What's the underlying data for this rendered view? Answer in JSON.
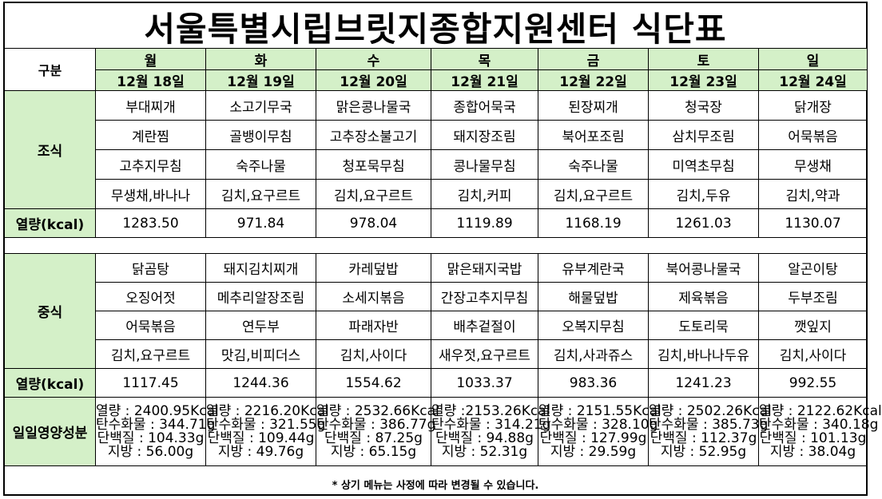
{
  "title": "서울특별시립브릿지종합지원센터  식단표",
  "header": {
    "category_label": "구분",
    "days": [
      "월",
      "화",
      "수",
      "목",
      "금",
      "토",
      "일"
    ],
    "dates": [
      "12월 18일",
      "12월 19일",
      "12월 20일",
      "12월 21일",
      "12월 22일",
      "12월 23일",
      "12월 24일"
    ]
  },
  "breakfast": {
    "label": "조식",
    "rows": [
      [
        "부대찌개",
        "소고기무국",
        "맑은콩나물국",
        "종합어묵국",
        "된장찌개",
        "청국장",
        "닭개장"
      ],
      [
        "계란찜",
        "골뱅이무침",
        "고추장소불고기",
        "돼지장조림",
        "북어포조림",
        "삼치무조림",
        "어묵볶음"
      ],
      [
        "고추지무침",
        "숙주나물",
        "청포묵무침",
        "콩나물무침",
        "숙주나물",
        "미역초무침",
        "무생채"
      ],
      [
        "무생채,바나나",
        "김치,요구르트",
        "김치,요구르트",
        "김치,커피",
        "김치,요구르트",
        "김치,두유",
        "김치,약과"
      ]
    ],
    "calorie_label": "열량(kcal)",
    "calories": [
      "1283.50",
      "971.84",
      "978.04",
      "1119.89",
      "1168.19",
      "1261.03",
      "1130.07"
    ]
  },
  "lunch": {
    "label": "중식",
    "rows": [
      [
        "닭곰탕",
        "돼지김치찌개",
        "카레덮밥",
        "맑은돼지국밥",
        "유부계란국",
        "북어콩나물국",
        "알곤이탕"
      ],
      [
        "오징어젓",
        "메추리알장조림",
        "소세지볶음",
        "간장고추지무침",
        "해물덮밥",
        "제육볶음",
        "두부조림"
      ],
      [
        "어묵볶음",
        "연두부",
        "파래자반",
        "배추겉절이",
        "오복지무침",
        "도토리묵",
        "깻잎지"
      ],
      [
        "김치,요구르트",
        "맛김,비피더스",
        "김치,사이다",
        "새우젓,요구르트",
        "김치,사과쥬스",
        "김치,바나나두유",
        "김치,사이다"
      ]
    ],
    "calorie_label": "열량(kcal)",
    "calories": [
      "1117.45",
      "1244.36",
      "1554.62",
      "1033.37",
      "983.36",
      "1241.23",
      "992.55"
    ]
  },
  "nutrition": {
    "label": "일일영양성분",
    "cells": [
      [
        "열량 : 2400.95Kcal",
        "탄수화물 : 344.71g",
        "단백질 : 104.33g",
        "지방 : 56.00g"
      ],
      [
        "열량 : 2216.20Kcal",
        "탄수화물 : 321.55g",
        "단백질 : 109.44g",
        "지방 : 49.76g"
      ],
      [
        "열량 : 2532.66Kcal",
        "탄수화물 : 386.77g",
        "단백질 : 87.25g",
        "지방 : 65.15g"
      ],
      [
        "열량 :2153.26Kcal",
        "탄수화물 : 314.21g",
        "단백질 : 94.88g",
        "지방 : 52.31g"
      ],
      [
        "열량 : 2151.55Kcal",
        "탄수화물 : 328.10g",
        "단백질 : 127.99g",
        "지방 : 29.59g"
      ],
      [
        "열량 : 2502.26Kcal",
        "탄수화물 : 385.73g",
        "단백질 : 112.37g",
        "지방 : 52.95g"
      ],
      [
        "열량 : 2122.62Kcal",
        "탄수화물 : 340.18g",
        "단백질 : 101.13g",
        "지방 : 38.04g"
      ]
    ]
  },
  "footer": "* 상기 메뉴는 사정에 따라 변경될 수 있습니다.",
  "colors": {
    "header_bg": "#d4f0c8",
    "border": "#000000"
  }
}
